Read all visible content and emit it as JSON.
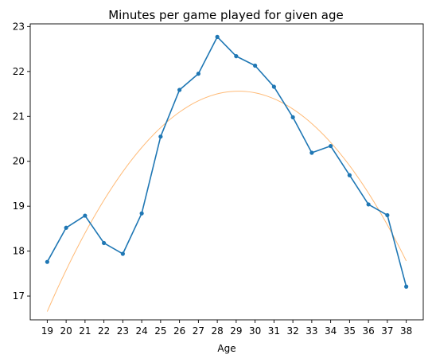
{
  "chart_data": {
    "type": "line",
    "title": "Minutes per game played for given age",
    "xlabel": "Age",
    "ylabel": "",
    "xlim": [
      18.1,
      38.9
    ],
    "ylim": [
      16.47,
      23.06
    ],
    "grid": false,
    "x_ticks": [
      19,
      20,
      21,
      22,
      23,
      24,
      25,
      26,
      27,
      28,
      29,
      30,
      31,
      32,
      33,
      34,
      35,
      36,
      37,
      38
    ],
    "y_ticks": [
      17,
      18,
      19,
      20,
      21,
      22,
      23
    ],
    "series": [
      {
        "color": "#1f77b4",
        "marker": "circle",
        "x": [
          19,
          20,
          21,
          22,
          23,
          24,
          25,
          26,
          27,
          28,
          29,
          30,
          31,
          32,
          33,
          34,
          35,
          36,
          37,
          38
        ],
        "y": [
          17.76,
          18.52,
          18.79,
          18.18,
          17.94,
          18.84,
          20.55,
          21.59,
          21.95,
          22.77,
          22.34,
          22.13,
          21.66,
          20.98,
          20.19,
          20.34,
          19.69,
          19.04,
          18.8,
          17.21
        ]
      },
      {
        "color": "#ffbb78",
        "marker": "none",
        "fit": "quadratic",
        "x": [
          19,
          20,
          21,
          22,
          23,
          24,
          25,
          26,
          27,
          28,
          29,
          30,
          31,
          32,
          33,
          34,
          35,
          36,
          37,
          38
        ],
        "y": [
          16.75,
          17.67,
          18.46,
          19.13,
          19.71,
          20.2,
          20.61,
          20.95,
          21.22,
          21.42,
          21.56,
          21.59,
          21.51,
          21.3,
          20.98,
          20.58,
          20.01,
          19.3,
          18.48,
          17.57
        ]
      }
    ]
  }
}
